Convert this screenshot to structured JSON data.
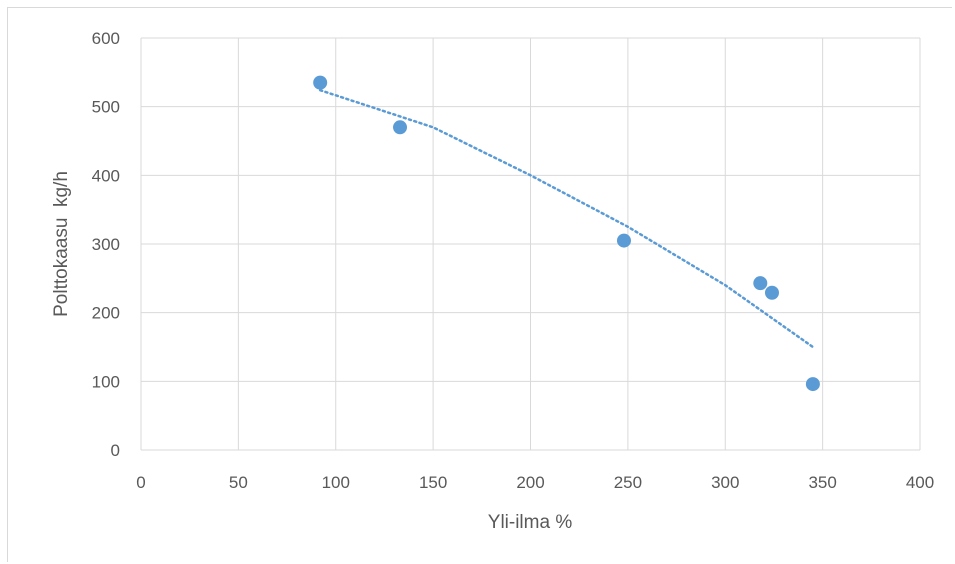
{
  "chart_data": {
    "type": "scatter",
    "xlabel": "Yli-ilma %",
    "ylabel": "Polttokaasu  kg/h",
    "xlim": [
      0,
      400
    ],
    "ylim": [
      0,
      600
    ],
    "x_ticks": [
      0,
      50,
      100,
      150,
      200,
      250,
      300,
      350,
      400
    ],
    "y_ticks": [
      0,
      100,
      200,
      300,
      400,
      500,
      600
    ],
    "grid": true,
    "series": [
      {
        "points": [
          {
            "x": 92,
            "y": 535
          },
          {
            "x": 133,
            "y": 470
          },
          {
            "x": 248,
            "y": 305
          },
          {
            "x": 318,
            "y": 243
          },
          {
            "x": 324,
            "y": 229
          },
          {
            "x": 345,
            "y": 96
          }
        ],
        "color": "#5b9bd5"
      }
    ],
    "trendline": {
      "type": "polynomial-2",
      "style": "dotted",
      "color": "#5b9bd5",
      "x_range": [
        92,
        345
      ],
      "points": [
        {
          "x": 92,
          "y": 524
        },
        {
          "x": 150,
          "y": 470
        },
        {
          "x": 200,
          "y": 400
        },
        {
          "x": 250,
          "y": 325
        },
        {
          "x": 300,
          "y": 240
        },
        {
          "x": 345,
          "y": 150
        }
      ]
    }
  }
}
